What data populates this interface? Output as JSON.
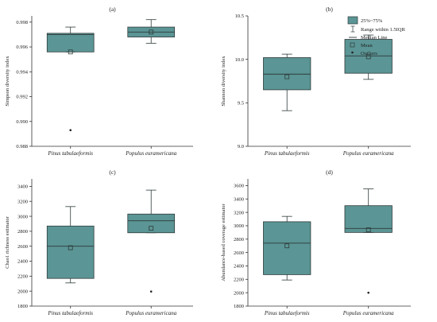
{
  "legend": {
    "box": "25%~75%",
    "whisker": "Range within 1.5IQR",
    "median": "Median Line",
    "mean": "Mean",
    "outliers": "Outliers"
  },
  "colors": {
    "box_fill": "#5b9595",
    "box_stroke": "#2f3a3a",
    "axis": "#333333"
  },
  "chart_data": [
    {
      "type": "box",
      "panel": "(a)",
      "ylabel": "Simpson diversity index",
      "ylim": [
        0.988,
        0.9985
      ],
      "yticks": [
        0.988,
        0.99,
        0.992,
        0.994,
        0.996,
        0.998
      ],
      "ytick_labels": [
        "0.988",
        "0.990",
        "0.992",
        "0.994",
        "0.996",
        "0.998"
      ],
      "categories": [
        "Pinus tabulaeformis",
        "Populus euramericana"
      ],
      "boxes": [
        {
          "whisker_low": 0.9956,
          "q1": 0.9956,
          "median": 0.997,
          "q3": 0.9971,
          "whisker_high": 0.9976,
          "mean": 0.9956,
          "outliers": [
            0.9893
          ]
        },
        {
          "whisker_low": 0.9963,
          "q1": 0.9968,
          "median": 0.9972,
          "q3": 0.9976,
          "whisker_high": 0.9982,
          "mean": 0.9972,
          "outliers": []
        }
      ]
    },
    {
      "type": "box",
      "panel": "(b)",
      "ylabel": "Shannon diversity index",
      "ylim": [
        9.0,
        10.5
      ],
      "yticks": [
        9.0,
        9.5,
        10.0,
        10.5
      ],
      "ytick_labels": [
        "9.0",
        "9.5",
        "10.0",
        "10.5"
      ],
      "categories": [
        "Pinus tabulaeformis",
        "Populus euramericana"
      ],
      "boxes": [
        {
          "whisker_low": 9.41,
          "q1": 9.65,
          "median": 9.83,
          "q3": 10.02,
          "whisker_high": 10.06,
          "mean": 9.8,
          "outliers": []
        },
        {
          "whisker_low": 9.77,
          "q1": 9.84,
          "median": 10.04,
          "q3": 10.23,
          "whisker_high": 10.28,
          "mean": 10.03,
          "outliers": []
        }
      ]
    },
    {
      "type": "box",
      "panel": "(c)",
      "ylabel": "Chao1 richness estimator",
      "ylim": [
        1800,
        3500
      ],
      "yticks": [
        1800,
        2000,
        2200,
        2400,
        2600,
        2800,
        3000,
        3200,
        3400
      ],
      "ytick_labels": [
        "1800",
        "2000",
        "2200",
        "2400",
        "2600",
        "2800",
        "3000",
        "3200",
        "3400"
      ],
      "categories": [
        "Pinus tabulaeformis",
        "Populus euramericana"
      ],
      "boxes": [
        {
          "whisker_low": 2110,
          "q1": 2170,
          "median": 2600,
          "q3": 2870,
          "whisker_high": 3130,
          "mean": 2580,
          "outliers": []
        },
        {
          "whisker_low": 2780,
          "q1": 2780,
          "median": 2940,
          "q3": 3030,
          "whisker_high": 3350,
          "mean": 2840,
          "outliers": [
            1995
          ]
        }
      ]
    },
    {
      "type": "box",
      "panel": "(d)",
      "ylabel": "Abundance-based coverage estimator",
      "ylim": [
        1800,
        3700
      ],
      "yticks": [
        1800,
        2000,
        2200,
        2400,
        2600,
        2800,
        3000,
        3200,
        3400,
        3600
      ],
      "ytick_labels": [
        "1800",
        "2000",
        "2200",
        "2400",
        "2600",
        "2800",
        "3000",
        "3200",
        "3400",
        "3600"
      ],
      "categories": [
        "Pinus tabulaeformis",
        "Populus euramericana"
      ],
      "boxes": [
        {
          "whisker_low": 2190,
          "q1": 2270,
          "median": 2740,
          "q3": 3060,
          "whisker_high": 3140,
          "mean": 2700,
          "outliers": []
        },
        {
          "whisker_low": 2900,
          "q1": 2900,
          "median": 2960,
          "q3": 3300,
          "whisker_high": 3550,
          "mean": 2940,
          "outliers": [
            2000
          ]
        }
      ]
    }
  ]
}
